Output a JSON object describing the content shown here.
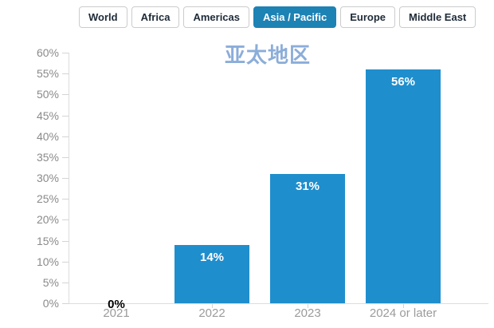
{
  "tabs": [
    {
      "label": "World",
      "active": false
    },
    {
      "label": "Africa",
      "active": false
    },
    {
      "label": "Americas",
      "active": false
    },
    {
      "label": "Asia / Pacific",
      "active": true
    },
    {
      "label": "Europe",
      "active": false
    },
    {
      "label": "Middle East",
      "active": false
    }
  ],
  "chart_data": {
    "type": "bar",
    "title": "亚太地区",
    "categories": [
      "2021",
      "2022",
      "2023",
      "2024 or later"
    ],
    "values": [
      0,
      14,
      31,
      56
    ],
    "data_labels": [
      "0%",
      "14%",
      "31%",
      "56%"
    ],
    "xlabel": "",
    "ylabel": "",
    "ylim": [
      0,
      60
    ],
    "ytick_step": 5,
    "ytick_suffix": "%",
    "grid": "none",
    "legend": "none",
    "bar_color": "#1f8ecd",
    "inside_label_color": "#ffffff",
    "zero_label_color": "#000000"
  },
  "colors": {
    "tab_active_bg": "#1d82b4",
    "title_blue": "#8badd9",
    "axis_line": "#dcdcdc",
    "y_label": "#8a8a8a",
    "x_label": "#9b9b9b"
  }
}
